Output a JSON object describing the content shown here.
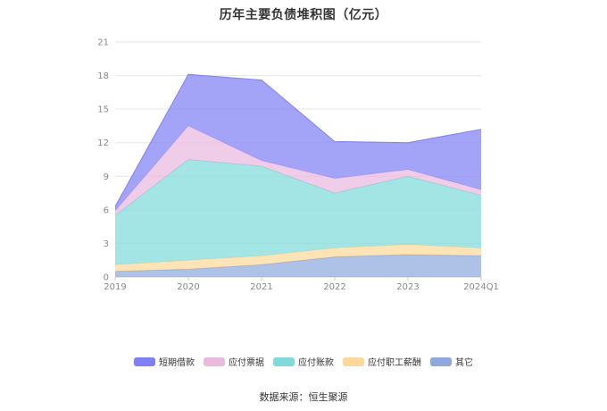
{
  "title": "历年主要负债堆积图（亿元）",
  "source": "数据来源：恒生聚源",
  "chart_data": {
    "type": "area",
    "stacked": true,
    "categories": [
      "2019",
      "2020",
      "2021",
      "2022",
      "2023",
      "2024Q1"
    ],
    "y_ticks": [
      "0",
      "3",
      "6",
      "9",
      "12",
      "15",
      "18",
      "21"
    ],
    "ylim": [
      0,
      21
    ],
    "grid": true,
    "legend_position": "bottom",
    "series": [
      {
        "name": "其它",
        "color": "#8fa9dc",
        "values": [
          0.5,
          0.7,
          1.1,
          1.8,
          2.0,
          1.9
        ]
      },
      {
        "name": "应付职工薪酬",
        "color": "#fcd99a",
        "values": [
          0.6,
          0.8,
          0.8,
          0.8,
          0.9,
          0.7
        ]
      },
      {
        "name": "应付账款",
        "color": "#7fdad9",
        "values": [
          4.4,
          9.0,
          8.0,
          4.9,
          6.1,
          4.7
        ]
      },
      {
        "name": "应付票据",
        "color": "#e9b9de",
        "values": [
          0.4,
          3.0,
          0.5,
          1.3,
          0.6,
          0.5
        ]
      },
      {
        "name": "短期借款",
        "color": "#8080f5",
        "values": [
          0.4,
          4.6,
          7.2,
          3.3,
          2.4,
          5.4
        ]
      }
    ],
    "legend_order": [
      "短期借款",
      "应付票据",
      "应付账款",
      "应付职工薪酬",
      "其它"
    ]
  }
}
